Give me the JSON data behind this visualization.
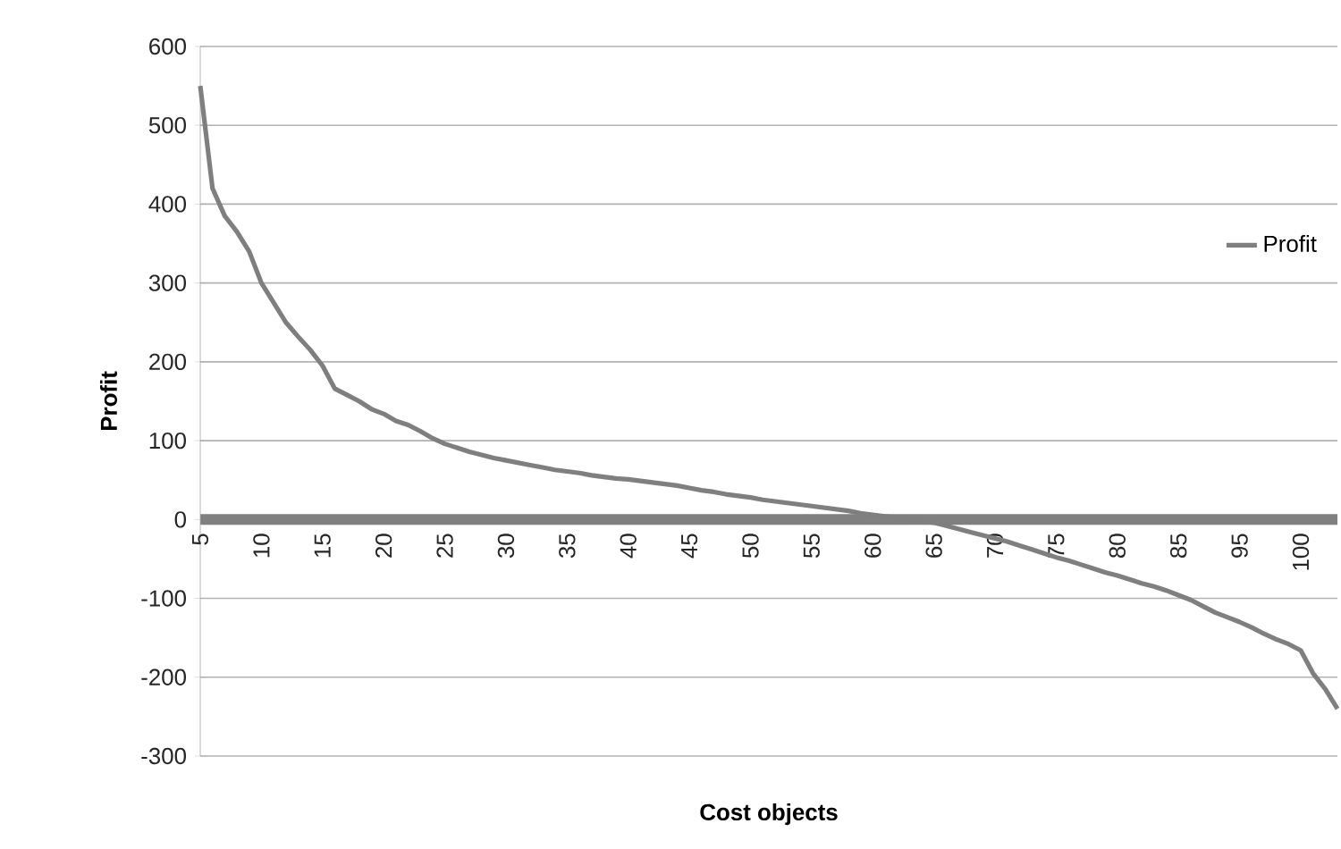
{
  "chart_data": {
    "type": "line",
    "xlabel": "Cost objects",
    "ylabel": "Profit",
    "categories": [
      "5",
      null,
      null,
      null,
      null,
      "10",
      null,
      null,
      null,
      null,
      "15",
      null,
      null,
      null,
      null,
      "20",
      null,
      null,
      null,
      null,
      "25",
      null,
      null,
      null,
      null,
      "30",
      null,
      null,
      null,
      null,
      "35",
      null,
      null,
      null,
      null,
      "40",
      null,
      null,
      null,
      null,
      "45",
      null,
      null,
      null,
      null,
      "50",
      null,
      null,
      null,
      null,
      "55",
      null,
      null,
      null,
      null,
      "60",
      null,
      null,
      null,
      null,
      "65",
      null,
      null,
      null,
      null,
      "70",
      null,
      null,
      null,
      null,
      "75",
      null,
      null,
      null,
      null,
      "80",
      null,
      null,
      null,
      null,
      "85",
      null,
      null,
      null,
      null,
      "95",
      null,
      null,
      null,
      null,
      "100",
      null,
      null,
      null
    ],
    "series": [
      {
        "name": "Profit",
        "color": "#7f7f7f",
        "values": [
          550,
          420,
          385,
          365,
          340,
          300,
          275,
          250,
          232,
          215,
          195,
          166,
          158,
          150,
          140,
          134,
          125,
          120,
          112,
          103,
          96,
          91,
          86,
          82,
          78,
          75,
          72,
          69,
          66,
          63,
          61,
          59,
          56,
          54,
          52,
          51,
          49,
          47,
          45,
          43,
          40,
          37,
          35,
          32,
          30,
          28,
          25,
          23,
          21,
          19,
          17,
          15,
          13,
          11,
          8,
          6,
          4,
          2,
          0,
          -2,
          -4,
          -8,
          -12,
          -16,
          -20,
          -24,
          -28,
          -33,
          -38,
          -43,
          -48,
          -52,
          -57,
          -62,
          -67,
          -71,
          -76,
          -81,
          -85,
          -90,
          -96,
          -102,
          -110,
          -118,
          -124,
          -130,
          -137,
          -145,
          -152,
          -158,
          -166,
          -195,
          -215,
          -240
        ]
      }
    ],
    "ylim": [
      -300,
      600
    ],
    "yticks": [
      -300,
      -200,
      -100,
      0,
      100,
      200,
      300,
      400,
      500,
      600
    ],
    "grid": "y",
    "legend": "right"
  }
}
